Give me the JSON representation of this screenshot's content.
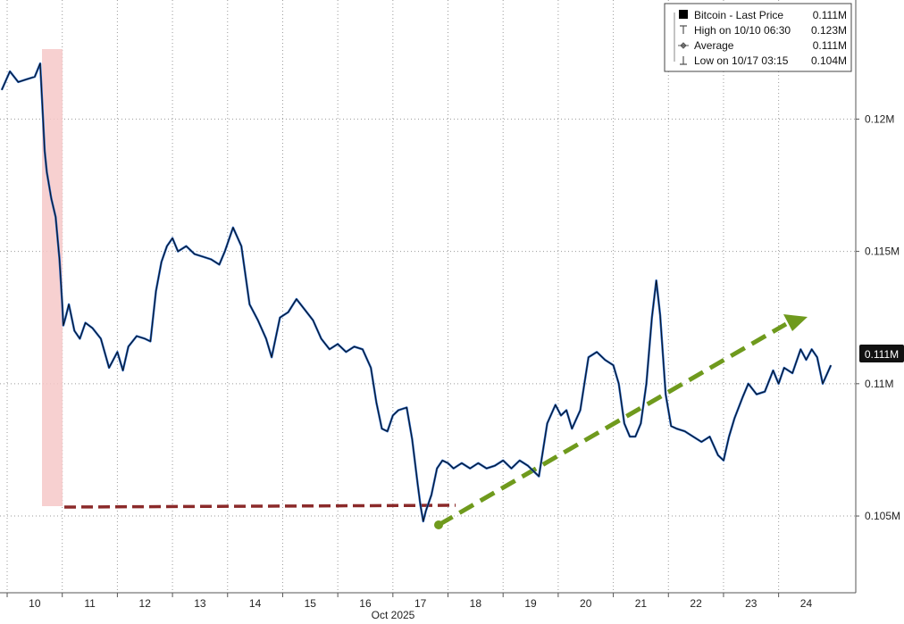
{
  "chart_data": {
    "type": "line",
    "xlabel": "Oct 2025",
    "ylabel": "",
    "x_tick_labels": [
      "10",
      "11",
      "12",
      "13",
      "14",
      "15",
      "16",
      "17",
      "18",
      "19",
      "20",
      "21",
      "22",
      "23",
      "24"
    ],
    "y_tick_labels": [
      "0.12M",
      "0.115M",
      "0.11M",
      "0.105M"
    ],
    "y_ticks": [
      0.12,
      0.115,
      0.11,
      0.105
    ],
    "ylim": [
      0.1021,
      0.1245
    ],
    "xlim": [
      9.37,
      24.9
    ],
    "grid": true,
    "legend_position": "top-right",
    "last_value_label": "0.111M",
    "legend": [
      {
        "label": "Bitcoin - Last Price",
        "value": "0.111M",
        "marker": "black-square"
      },
      {
        "label": "High on 10/10 06:30",
        "value": "0.123M",
        "marker": "high-tee"
      },
      {
        "label": "Average",
        "value": "0.111M",
        "marker": "average-diamond"
      },
      {
        "label": "Low on 10/17 03:15",
        "value": "0.104M",
        "marker": "low-tee"
      }
    ],
    "series": [
      {
        "name": "Bitcoin - Last Price",
        "color": "#1f5fbf",
        "x": [
          9.4,
          9.55,
          9.7,
          9.85,
          10.0,
          10.1,
          10.18,
          10.22,
          10.3,
          10.38,
          10.45,
          10.5,
          10.52,
          10.56,
          10.62,
          10.72,
          10.82,
          10.92,
          11.05,
          11.2,
          11.35,
          11.5,
          11.6,
          11.7,
          11.85,
          12.0,
          12.1,
          12.2,
          12.3,
          12.4,
          12.5,
          12.6,
          12.75,
          12.9,
          13.05,
          13.2,
          13.35,
          13.45,
          13.6,
          13.75,
          13.9,
          14.05,
          14.2,
          14.3,
          14.45,
          14.6,
          14.75,
          14.9,
          15.05,
          15.2,
          15.35,
          15.5,
          15.65,
          15.8,
          15.95,
          16.1,
          16.2,
          16.3,
          16.4,
          16.5,
          16.6,
          16.75,
          16.85,
          16.95,
          17.0,
          17.05,
          17.1,
          17.2,
          17.3,
          17.4,
          17.5,
          17.6,
          17.75,
          17.9,
          18.05,
          18.2,
          18.35,
          18.5,
          18.65,
          18.8,
          18.95,
          19.05,
          19.15,
          19.3,
          19.45,
          19.55,
          19.65,
          19.75,
          19.9,
          20.05,
          20.2,
          20.35,
          20.5,
          20.6,
          20.7,
          20.8,
          20.9,
          21.0,
          21.1,
          21.2,
          21.28,
          21.35,
          21.45,
          21.55,
          21.65,
          21.8,
          21.95,
          22.1,
          22.25,
          22.4,
          22.5,
          22.6,
          22.7,
          22.85,
          22.95,
          23.1,
          23.25,
          23.4,
          23.5,
          23.6,
          23.75,
          23.9,
          24.0,
          24.1,
          24.2,
          24.3,
          24.45
        ],
        "values": [
          0.1211,
          0.1218,
          0.1214,
          0.1215,
          0.1216,
          0.1221,
          0.1188,
          0.118,
          0.117,
          0.1163,
          0.1147,
          0.113,
          0.1122,
          0.1125,
          0.113,
          0.112,
          0.1117,
          0.1123,
          0.1121,
          0.1117,
          0.1106,
          0.1112,
          0.1105,
          0.1114,
          0.1118,
          0.1117,
          0.1116,
          0.1135,
          0.1146,
          0.1152,
          0.1155,
          0.115,
          0.1152,
          0.1149,
          0.1148,
          0.1147,
          0.1145,
          0.115,
          0.1159,
          0.1152,
          0.113,
          0.1124,
          0.1117,
          0.111,
          0.1125,
          0.1127,
          0.1132,
          0.1128,
          0.1124,
          0.1117,
          0.1113,
          0.1115,
          0.1112,
          0.1114,
          0.1113,
          0.1106,
          0.1093,
          0.1083,
          0.1082,
          0.1088,
          0.109,
          0.1091,
          0.1079,
          0.1062,
          0.1054,
          0.1048,
          0.1052,
          0.1058,
          0.1068,
          0.1071,
          0.107,
          0.1068,
          0.107,
          0.1068,
          0.107,
          0.1068,
          0.1069,
          0.1071,
          0.1068,
          0.1071,
          0.1069,
          0.1067,
          0.1065,
          0.1085,
          0.1092,
          0.1088,
          0.109,
          0.1083,
          0.109,
          0.111,
          0.1112,
          0.1109,
          0.1107,
          0.11,
          0.1085,
          0.108,
          0.108,
          0.1085,
          0.11,
          0.1125,
          0.1139,
          0.1126,
          0.1096,
          0.1084,
          0.1083,
          0.1082,
          0.108,
          0.1078,
          0.108,
          0.1073,
          0.1071,
          0.108,
          0.1087,
          0.1095,
          0.11,
          0.1096,
          0.1097,
          0.1105,
          0.11,
          0.1106,
          0.1104,
          0.1113,
          0.1109,
          0.1113,
          0.111,
          0.11,
          0.1107
        ]
      }
    ]
  }
}
